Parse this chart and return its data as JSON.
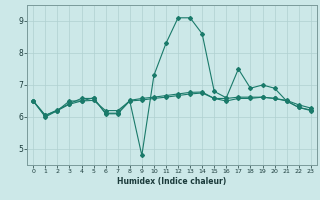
{
  "title": "",
  "xlabel": "Humidex (Indice chaleur)",
  "ylabel": "",
  "background_color": "#cce8e8",
  "grid_color": "#b0d0d0",
  "line_color": "#1a7a6a",
  "xlim": [
    -0.5,
    23.5
  ],
  "ylim": [
    4.5,
    9.5
  ],
  "xticks": [
    0,
    1,
    2,
    3,
    4,
    5,
    6,
    7,
    8,
    9,
    10,
    11,
    12,
    13,
    14,
    15,
    16,
    17,
    18,
    19,
    20,
    21,
    22,
    23
  ],
  "yticks": [
    5,
    6,
    7,
    8,
    9
  ],
  "lines": [
    {
      "x": [
        0,
        1,
        2,
        3,
        4,
        5,
        6,
        7,
        8,
        9,
        10,
        11,
        12,
        13,
        14,
        15,
        16,
        17,
        18,
        19,
        20,
        21,
        22,
        23
      ],
      "y": [
        6.5,
        6.0,
        6.2,
        6.5,
        6.5,
        6.6,
        6.1,
        6.1,
        6.5,
        4.8,
        7.3,
        8.3,
        9.1,
        9.1,
        8.6,
        6.8,
        6.6,
        7.5,
        6.9,
        7.0,
        6.9,
        6.5,
        6.3,
        6.2
      ],
      "marker": "D",
      "markersize": 2.0
    },
    {
      "x": [
        0,
        1,
        2,
        3,
        4,
        5,
        6,
        7,
        8,
        9,
        10,
        11,
        12,
        13,
        14,
        15,
        16,
        17,
        18,
        19,
        20,
        21,
        22,
        23
      ],
      "y": [
        6.5,
        6.05,
        6.2,
        6.4,
        6.5,
        6.52,
        6.2,
        6.2,
        6.5,
        6.53,
        6.58,
        6.62,
        6.67,
        6.72,
        6.75,
        6.58,
        6.58,
        6.62,
        6.62,
        6.62,
        6.58,
        6.52,
        6.38,
        6.28
      ],
      "marker": "D",
      "markersize": 2.0
    },
    {
      "x": [
        0,
        1,
        2,
        3,
        4,
        5,
        6,
        7,
        8,
        9,
        10,
        11,
        12,
        13,
        14,
        15,
        16,
        17,
        18,
        19,
        20,
        21,
        22,
        23
      ],
      "y": [
        6.5,
        6.05,
        6.22,
        6.42,
        6.58,
        6.58,
        6.12,
        6.12,
        6.52,
        6.58,
        6.62,
        6.67,
        6.72,
        6.77,
        6.78,
        6.58,
        6.5,
        6.58,
        6.58,
        6.62,
        6.58,
        6.5,
        6.3,
        6.22
      ],
      "marker": "D",
      "markersize": 2.0
    }
  ]
}
